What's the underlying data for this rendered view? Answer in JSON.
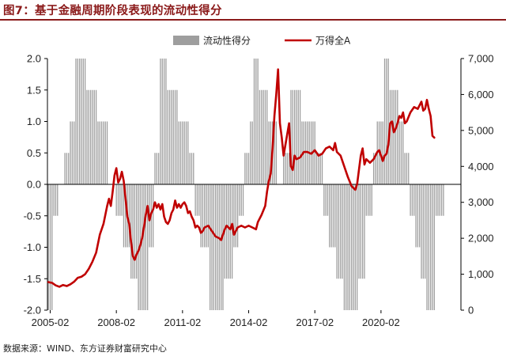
{
  "header": {
    "title": "图7：基于金融周期阶段表现的流动性得分"
  },
  "footer": {
    "source": "数据来源：WIND、东方证券财富研究中心"
  },
  "colors": {
    "bars": "#9e9e9e",
    "line": "#c00000",
    "title": "#8b1a1a",
    "axis": "#000000"
  },
  "chart_data": {
    "type": "bar+line",
    "title": "图7：基于金融周期阶段表现的流动性得分",
    "legend": [
      "流动性得分",
      "万得全A"
    ],
    "legend_position": "top-right",
    "x_tick_labels": [
      "2005-02",
      "2008-02",
      "2011-02",
      "2014-02",
      "2017-02",
      "2020-02"
    ],
    "x_start": "2005-01",
    "y_left_ticks": [
      "2.0",
      "1.5",
      "1.0",
      "0.5",
      "0.0",
      "-0.5",
      "-1.0",
      "-1.5",
      "-2.0"
    ],
    "y_right_ticks": [
      "7,000",
      "6,000",
      "5,000",
      "4,000",
      "3,000",
      "2,000",
      "1,000",
      "0"
    ],
    "ylim_left": [
      -2,
      2
    ],
    "ylim_right": [
      0,
      7000
    ],
    "series": [
      {
        "name": "流动性得分",
        "type": "bar",
        "axis": "left",
        "segments": [
          {
            "start": "2005-01",
            "months": 3,
            "value": -2.0
          },
          {
            "start": "2005-04",
            "months": 3,
            "value": -0.5
          },
          {
            "start": "2005-07",
            "months": 3,
            "value": 0.0
          },
          {
            "start": "2005-10",
            "months": 3,
            "value": 0.5
          },
          {
            "start": "2006-01",
            "months": 3,
            "value": 1.0
          },
          {
            "start": "2006-04",
            "months": 6,
            "value": 2.0
          },
          {
            "start": "2006-10",
            "months": 6,
            "value": 1.5
          },
          {
            "start": "2007-04",
            "months": 6,
            "value": 1.0
          },
          {
            "start": "2007-10",
            "months": 4,
            "value": 0.0
          },
          {
            "start": "2008-02",
            "months": 4,
            "value": -0.5
          },
          {
            "start": "2008-06",
            "months": 4,
            "value": -1.0
          },
          {
            "start": "2008-10",
            "months": 4,
            "value": -1.5
          },
          {
            "start": "2009-02",
            "months": 6,
            "value": -2.0
          },
          {
            "start": "2009-08",
            "months": 3,
            "value": -1.0
          },
          {
            "start": "2009-11",
            "months": 3,
            "value": 0.5
          },
          {
            "start": "2010-02",
            "months": 4,
            "value": 2.0
          },
          {
            "start": "2010-06",
            "months": 6,
            "value": 1.5
          },
          {
            "start": "2010-12",
            "months": 6,
            "value": 1.0
          },
          {
            "start": "2011-06",
            "months": 3,
            "value": 0.5
          },
          {
            "start": "2011-09",
            "months": 3,
            "value": -0.5
          },
          {
            "start": "2011-12",
            "months": 5,
            "value": -1.0
          },
          {
            "start": "2012-05",
            "months": 8,
            "value": -2.0
          },
          {
            "start": "2013-01",
            "months": 5,
            "value": -1.5
          },
          {
            "start": "2013-06",
            "months": 3,
            "value": -1.0
          },
          {
            "start": "2013-09",
            "months": 3,
            "value": -0.5
          },
          {
            "start": "2013-12",
            "months": 3,
            "value": 0.5
          },
          {
            "start": "2014-03",
            "months": 2,
            "value": 1.0
          },
          {
            "start": "2014-05",
            "months": 3,
            "value": 2.0
          },
          {
            "start": "2014-08",
            "months": 5,
            "value": 1.5
          },
          {
            "start": "2015-01",
            "months": 5,
            "value": 1.0
          },
          {
            "start": "2015-06",
            "months": 3,
            "value": 0.0
          },
          {
            "start": "2015-09",
            "months": 4,
            "value": 0.5
          },
          {
            "start": "2016-01",
            "months": 6,
            "value": 1.5
          },
          {
            "start": "2016-07",
            "months": 8,
            "value": 1.0
          },
          {
            "start": "2017-03",
            "months": 4,
            "value": 0.5
          },
          {
            "start": "2017-07",
            "months": 3,
            "value": -0.5
          },
          {
            "start": "2017-10",
            "months": 4,
            "value": -1.0
          },
          {
            "start": "2018-02",
            "months": 4,
            "value": -1.5
          },
          {
            "start": "2018-06",
            "months": 8,
            "value": -2.0
          },
          {
            "start": "2019-02",
            "months": 4,
            "value": -1.5
          },
          {
            "start": "2019-06",
            "months": 4,
            "value": -0.5
          },
          {
            "start": "2019-10",
            "months": 2,
            "value": 0.5
          },
          {
            "start": "2019-12",
            "months": 4,
            "value": 1.0
          },
          {
            "start": "2020-04",
            "months": 3,
            "value": 2.0
          },
          {
            "start": "2020-07",
            "months": 5,
            "value": 1.5
          },
          {
            "start": "2020-12",
            "months": 3,
            "value": 1.0
          },
          {
            "start": "2021-03",
            "months": 3,
            "value": 0.5
          },
          {
            "start": "2021-06",
            "months": 3,
            "value": -0.5
          },
          {
            "start": "2021-09",
            "months": 3,
            "value": -1.0
          },
          {
            "start": "2021-12",
            "months": 3,
            "value": -1.5
          },
          {
            "start": "2022-03",
            "months": 5,
            "value": -2.0
          },
          {
            "start": "2022-08",
            "months": 5,
            "value": -0.5
          }
        ]
      },
      {
        "name": "万得全A",
        "type": "line",
        "axis": "right",
        "points": [
          [
            "2005-01",
            780
          ],
          [
            "2005-03",
            760
          ],
          [
            "2005-05",
            690
          ],
          [
            "2005-07",
            650
          ],
          [
            "2005-09",
            700
          ],
          [
            "2005-11",
            670
          ],
          [
            "2006-01",
            720
          ],
          [
            "2006-03",
            790
          ],
          [
            "2006-05",
            900
          ],
          [
            "2006-07",
            930
          ],
          [
            "2006-09",
            1000
          ],
          [
            "2006-11",
            1150
          ],
          [
            "2007-01",
            1350
          ],
          [
            "2007-03",
            1600
          ],
          [
            "2007-05",
            2100
          ],
          [
            "2007-07",
            2400
          ],
          [
            "2007-09",
            2900
          ],
          [
            "2007-10",
            3100
          ],
          [
            "2007-11",
            2900
          ],
          [
            "2007-12",
            3300
          ],
          [
            "2008-01",
            3750
          ],
          [
            "2008-02",
            3950
          ],
          [
            "2008-03",
            3550
          ],
          [
            "2008-04",
            3650
          ],
          [
            "2008-05",
            3850
          ],
          [
            "2008-06",
            3600
          ],
          [
            "2008-07",
            3100
          ],
          [
            "2008-08",
            2600
          ],
          [
            "2008-09",
            2400
          ],
          [
            "2008-10",
            1900
          ],
          [
            "2008-11",
            1500
          ],
          [
            "2008-12",
            1400
          ],
          [
            "2009-01",
            1550
          ],
          [
            "2009-02",
            1650
          ],
          [
            "2009-03",
            1800
          ],
          [
            "2009-04",
            2000
          ],
          [
            "2009-05",
            2300
          ],
          [
            "2009-06",
            2650
          ],
          [
            "2009-07",
            2900
          ],
          [
            "2009-08",
            2500
          ],
          [
            "2009-09",
            2700
          ],
          [
            "2009-10",
            2800
          ],
          [
            "2009-11",
            3000
          ],
          [
            "2009-12",
            2850
          ],
          [
            "2010-01",
            2950
          ],
          [
            "2010-02",
            2800
          ],
          [
            "2010-03",
            2950
          ],
          [
            "2010-04",
            2600
          ],
          [
            "2010-05",
            2450
          ],
          [
            "2010-06",
            2400
          ],
          [
            "2010-07",
            2500
          ],
          [
            "2010-08",
            2700
          ],
          [
            "2010-09",
            2800
          ],
          [
            "2010-10",
            3050
          ],
          [
            "2010-11",
            2850
          ],
          [
            "2010-12",
            2950
          ],
          [
            "2011-01",
            2850
          ],
          [
            "2011-02",
            2950
          ],
          [
            "2011-03",
            3000
          ],
          [
            "2011-04",
            2900
          ],
          [
            "2011-05",
            2700
          ],
          [
            "2011-06",
            2750
          ],
          [
            "2011-07",
            2600
          ],
          [
            "2011-08",
            2500
          ],
          [
            "2011-09",
            2300
          ],
          [
            "2011-10",
            2350
          ],
          [
            "2011-11",
            2300
          ],
          [
            "2011-12",
            2150
          ],
          [
            "2012-01",
            2200
          ],
          [
            "2012-02",
            2300
          ],
          [
            "2012-04",
            2350
          ],
          [
            "2012-06",
            2200
          ],
          [
            "2012-08",
            2050
          ],
          [
            "2012-10",
            2000
          ],
          [
            "2012-11",
            1950
          ],
          [
            "2012-12",
            2100
          ],
          [
            "2013-01",
            2250
          ],
          [
            "2013-02",
            2350
          ],
          [
            "2013-04",
            2250
          ],
          [
            "2013-05",
            2400
          ],
          [
            "2013-06",
            2100
          ],
          [
            "2013-08",
            2300
          ],
          [
            "2013-10",
            2350
          ],
          [
            "2013-12",
            2300
          ],
          [
            "2014-02",
            2350
          ],
          [
            "2014-04",
            2300
          ],
          [
            "2014-06",
            2250
          ],
          [
            "2014-07",
            2450
          ],
          [
            "2014-09",
            2650
          ],
          [
            "2014-11",
            2900
          ],
          [
            "2014-12",
            3300
          ],
          [
            "2015-01",
            3600
          ],
          [
            "2015-02",
            3800
          ],
          [
            "2015-03",
            4500
          ],
          [
            "2015-04",
            5400
          ],
          [
            "2015-05",
            6000
          ],
          [
            "2015-06",
            6700
          ],
          [
            "2015-07",
            5200
          ],
          [
            "2015-08",
            4800
          ],
          [
            "2015-09",
            4300
          ],
          [
            "2015-10",
            4600
          ],
          [
            "2015-11",
            4900
          ],
          [
            "2015-12",
            5200
          ],
          [
            "2016-01",
            4000
          ],
          [
            "2016-02",
            3900
          ],
          [
            "2016-03",
            4300
          ],
          [
            "2016-04",
            4200
          ],
          [
            "2016-06",
            4250
          ],
          [
            "2016-08",
            4400
          ],
          [
            "2016-10",
            4400
          ],
          [
            "2016-12",
            4350
          ],
          [
            "2017-02",
            4450
          ],
          [
            "2017-04",
            4300
          ],
          [
            "2017-06",
            4350
          ],
          [
            "2017-08",
            4500
          ],
          [
            "2017-10",
            4550
          ],
          [
            "2017-12",
            4450
          ],
          [
            "2018-01",
            4650
          ],
          [
            "2018-02",
            4400
          ],
          [
            "2018-04",
            4300
          ],
          [
            "2018-06",
            4000
          ],
          [
            "2018-08",
            3700
          ],
          [
            "2018-10",
            3450
          ],
          [
            "2018-12",
            3350
          ],
          [
            "2019-01",
            3500
          ],
          [
            "2019-02",
            3900
          ],
          [
            "2019-03",
            4300
          ],
          [
            "2019-04",
            4500
          ],
          [
            "2019-05",
            4050
          ],
          [
            "2019-06",
            4200
          ],
          [
            "2019-08",
            4100
          ],
          [
            "2019-10",
            4200
          ],
          [
            "2019-12",
            4400
          ],
          [
            "2020-01",
            4450
          ],
          [
            "2020-02",
            4300
          ],
          [
            "2020-03",
            4150
          ],
          [
            "2020-04",
            4300
          ],
          [
            "2020-05",
            4350
          ],
          [
            "2020-06",
            4600
          ],
          [
            "2020-07",
            5200
          ],
          [
            "2020-08",
            5250
          ],
          [
            "2020-09",
            4950
          ],
          [
            "2020-10",
            5050
          ],
          [
            "2020-11",
            5200
          ],
          [
            "2020-12",
            5400
          ],
          [
            "2021-01",
            5350
          ],
          [
            "2021-02",
            5500
          ],
          [
            "2021-03",
            5200
          ],
          [
            "2021-04",
            5250
          ],
          [
            "2021-06",
            5500
          ],
          [
            "2021-08",
            5650
          ],
          [
            "2021-10",
            5600
          ],
          [
            "2021-12",
            5800
          ],
          [
            "2022-01",
            5550
          ],
          [
            "2022-02",
            5600
          ],
          [
            "2022-03",
            5850
          ],
          [
            "2022-04",
            5600
          ],
          [
            "2022-05",
            5400
          ],
          [
            "2022-06",
            4850
          ],
          [
            "2022-07",
            4800
          ]
        ]
      }
    ]
  }
}
